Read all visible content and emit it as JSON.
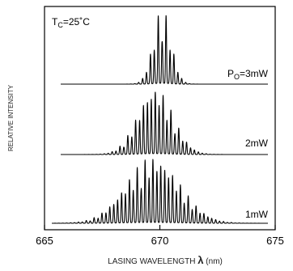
{
  "chart_data": {
    "type": "line",
    "annotation": {
      "prefix": "T",
      "subscript": "C",
      "suffix": "=25˚C"
    },
    "xlabel": {
      "text": "LASING WAVELENGTH",
      "symbol": "λ",
      "unit": "(nm)"
    },
    "ylabel": "RELATIVE INTENSITY",
    "xlim": [
      665,
      675
    ],
    "xticks": [
      665,
      670,
      675
    ],
    "grid": false,
    "series": [
      {
        "name": "Po=3mW",
        "label": {
          "prefix": "P",
          "subscript": "O",
          "suffix": "=3mW"
        },
        "center_nm": 670.1,
        "mode_spacing_nm": 0.17,
        "envelope_sigma_nm": 0.38,
        "envelope_range_nm": [
          667.8,
          671.8
        ],
        "peak_relative": 0.92,
        "dominant_modes_nm": [
          669.6,
          669.8,
          669.95,
          670.1,
          670.3,
          670.45,
          670.6
        ]
      },
      {
        "name": "2mW",
        "label": {
          "prefix": "",
          "subscript": "",
          "suffix": "2mW"
        },
        "center_nm": 669.8,
        "mode_spacing_nm": 0.17,
        "envelope_sigma_nm": 0.75,
        "envelope_range_nm": [
          666.8,
          672.2
        ],
        "peak_relative": 0.88,
        "dominant_modes_nm": [
          669.2,
          669.5,
          669.7,
          669.9,
          670.1,
          670.3
        ]
      },
      {
        "name": "1mW",
        "label": {
          "prefix": "",
          "subscript": "",
          "suffix": "1mW"
        },
        "center_nm": 669.7,
        "mode_spacing_nm": 0.17,
        "envelope_sigma_nm": 1.15,
        "envelope_range_nm": [
          665.5,
          673.9
        ],
        "peak_relative": 0.88,
        "dominant_modes_nm": [
          668.9,
          669.2,
          669.4,
          669.6,
          669.8,
          670.0,
          670.2,
          670.4
        ]
      }
    ]
  }
}
